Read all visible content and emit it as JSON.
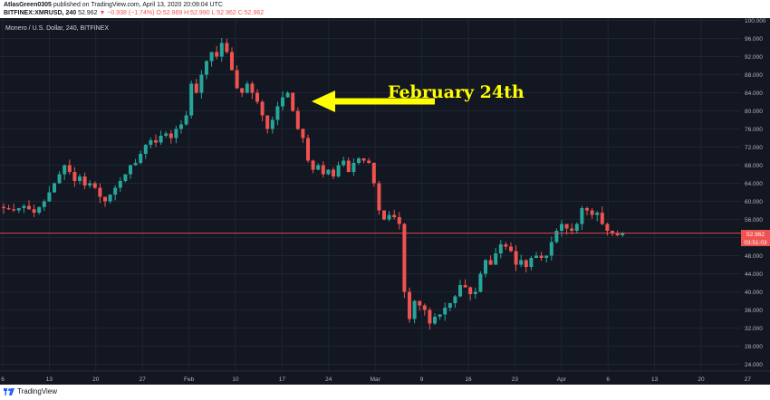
{
  "header": {
    "publisher_name": "AtlasGreen0305",
    "publisher_rest": " published on TradingView.com, April 13, 2020 20:09:04 UTC",
    "symbol": "BITFINEX:XMRUSD, 240",
    "last": "52.962",
    "change": "▼ −0.938 (−1.74%)",
    "ohlc": "O:52.969 H:52.990 L:52.962 C:52.962"
  },
  "footer": {
    "brand": "TradingView"
  },
  "colors": {
    "background": "#131722",
    "grid": "#1f2433",
    "up": "#26a69a",
    "down": "#ef5350",
    "axis_text": "#b2b5be",
    "annotation": "#ffff00",
    "price_line": "#ef5350"
  },
  "chart_data": {
    "type": "candlestick",
    "title": "Monero / U.S. Dollar, 240, BITFINEX",
    "x_tick_labels": [
      "6",
      "13",
      "20",
      "27",
      "Feb",
      "10",
      "17",
      "24",
      "Mar",
      "9",
      "16",
      "23",
      "Apr",
      "6",
      "13",
      "20",
      "27",
      "Ma"
    ],
    "y_tick_labels": [
      "24.000",
      "28.000",
      "32.000",
      "36.000",
      "40.000",
      "44.000",
      "48.000",
      "52.000",
      "56.000",
      "60.000",
      "64.000",
      "68.000",
      "72.000",
      "76.000",
      "80.000",
      "84.000",
      "88.000",
      "92.000",
      "96.000",
      "100.000"
    ],
    "ylim": [
      22.5,
      100.5
    ],
    "y_axis_side": "right",
    "grid": true,
    "price_series_close": [
      [
        0,
        58.5
      ],
      [
        2,
        58.0
      ],
      [
        4,
        59.0
      ],
      [
        6,
        57.5
      ],
      [
        8,
        60.0
      ],
      [
        9,
        62.0
      ],
      [
        10,
        64.0
      ],
      [
        11,
        66.0
      ],
      [
        12,
        68.0
      ],
      [
        13,
        66.5
      ],
      [
        14,
        64.5
      ],
      [
        15,
        65.5
      ],
      [
        16,
        63.5
      ],
      [
        17,
        64.0
      ],
      [
        18,
        63.0
      ],
      [
        19,
        61.0
      ],
      [
        20,
        60.0
      ],
      [
        21,
        61.5
      ],
      [
        22,
        63.0
      ],
      [
        23,
        64.5
      ],
      [
        24,
        66.0
      ],
      [
        25,
        68.0
      ],
      [
        26,
        68.5
      ],
      [
        27,
        70.5
      ],
      [
        28,
        72.5
      ],
      [
        29,
        73.5
      ],
      [
        30,
        73.0
      ],
      [
        31,
        74.5
      ],
      [
        32,
        75.0
      ],
      [
        33,
        74.0
      ],
      [
        34,
        76.0
      ],
      [
        35,
        77.0
      ],
      [
        36,
        79.0
      ],
      [
        37,
        86.0
      ],
      [
        38,
        84.0
      ],
      [
        38.5,
        82.5
      ],
      [
        39,
        88.0
      ],
      [
        40,
        91.0
      ],
      [
        41,
        93.0
      ],
      [
        42,
        92.0
      ],
      [
        43,
        95.0
      ],
      [
        44,
        93.0
      ],
      [
        45,
        89.0
      ],
      [
        46,
        85.0
      ],
      [
        47,
        84.0
      ],
      [
        48,
        86.0
      ],
      [
        49,
        84.0
      ],
      [
        50,
        82.0
      ],
      [
        51,
        79.0
      ],
      [
        52,
        76.0
      ],
      [
        53,
        78.0
      ],
      [
        54,
        81.0
      ],
      [
        54.5,
        79.0
      ],
      [
        55,
        83.0
      ],
      [
        56,
        84.0
      ],
      [
        57,
        80.0
      ],
      [
        58,
        76.0
      ],
      [
        59,
        74.0
      ],
      [
        59.5,
        71.0
      ],
      [
        60,
        69.0
      ],
      [
        61,
        67.0
      ],
      [
        62,
        68.0
      ],
      [
        63,
        66.0
      ],
      [
        64,
        67.0
      ],
      [
        65,
        65.5
      ],
      [
        66,
        68.0
      ],
      [
        67,
        69.0
      ],
      [
        68,
        66.5
      ],
      [
        69,
        68.5
      ],
      [
        70,
        69.5
      ],
      [
        71,
        69.0
      ],
      [
        72,
        68.5
      ],
      [
        73,
        64.0
      ],
      [
        74,
        58.0
      ],
      [
        75,
        56.0
      ],
      [
        76,
        57.0
      ],
      [
        77,
        56.5
      ],
      [
        78,
        55.0
      ],
      [
        78.5,
        50.0
      ],
      [
        79,
        40.0
      ],
      [
        79.5,
        36.0
      ],
      [
        80,
        34.0
      ],
      [
        80.5,
        35.0
      ],
      [
        81,
        38.0
      ],
      [
        82,
        37.0
      ],
      [
        83,
        36.0
      ],
      [
        84,
        33.0
      ],
      [
        85,
        34.5
      ],
      [
        85.5,
        36.0
      ],
      [
        86,
        35.0
      ],
      [
        87,
        36.5
      ],
      [
        88,
        37.5
      ],
      [
        89,
        39.0
      ],
      [
        90,
        41.5
      ],
      [
        91,
        41.0
      ],
      [
        92,
        39.5
      ],
      [
        93,
        40.0
      ],
      [
        94,
        44.0
      ],
      [
        95,
        47.0
      ],
      [
        95.5,
        48.0
      ],
      [
        96,
        46.0
      ],
      [
        97,
        48.5
      ],
      [
        98,
        50.5
      ],
      [
        99,
        50.0
      ],
      [
        100,
        49.0
      ],
      [
        101,
        46.0
      ],
      [
        102,
        47.0
      ],
      [
        103,
        45.5
      ],
      [
        104,
        47.5
      ],
      [
        105,
        48.0
      ],
      [
        106,
        47.5
      ],
      [
        107,
        48.0
      ],
      [
        108,
        51.0
      ],
      [
        109,
        53.5
      ],
      [
        110,
        55.0
      ],
      [
        111,
        54.0
      ],
      [
        112,
        53.5
      ],
      [
        113,
        55.0
      ],
      [
        114,
        58.5
      ],
      [
        115,
        58.0
      ],
      [
        116,
        57.0
      ],
      [
        117,
        57.5
      ],
      [
        118,
        55.0
      ],
      [
        119,
        53.5
      ],
      [
        120,
        53.0
      ],
      [
        121,
        52.5
      ],
      [
        121.5,
        53.5
      ],
      [
        122,
        52.962
      ]
    ],
    "last_price": "52.962",
    "countdown": "03:51:03",
    "annotation": {
      "text": "February 24th"
    }
  }
}
